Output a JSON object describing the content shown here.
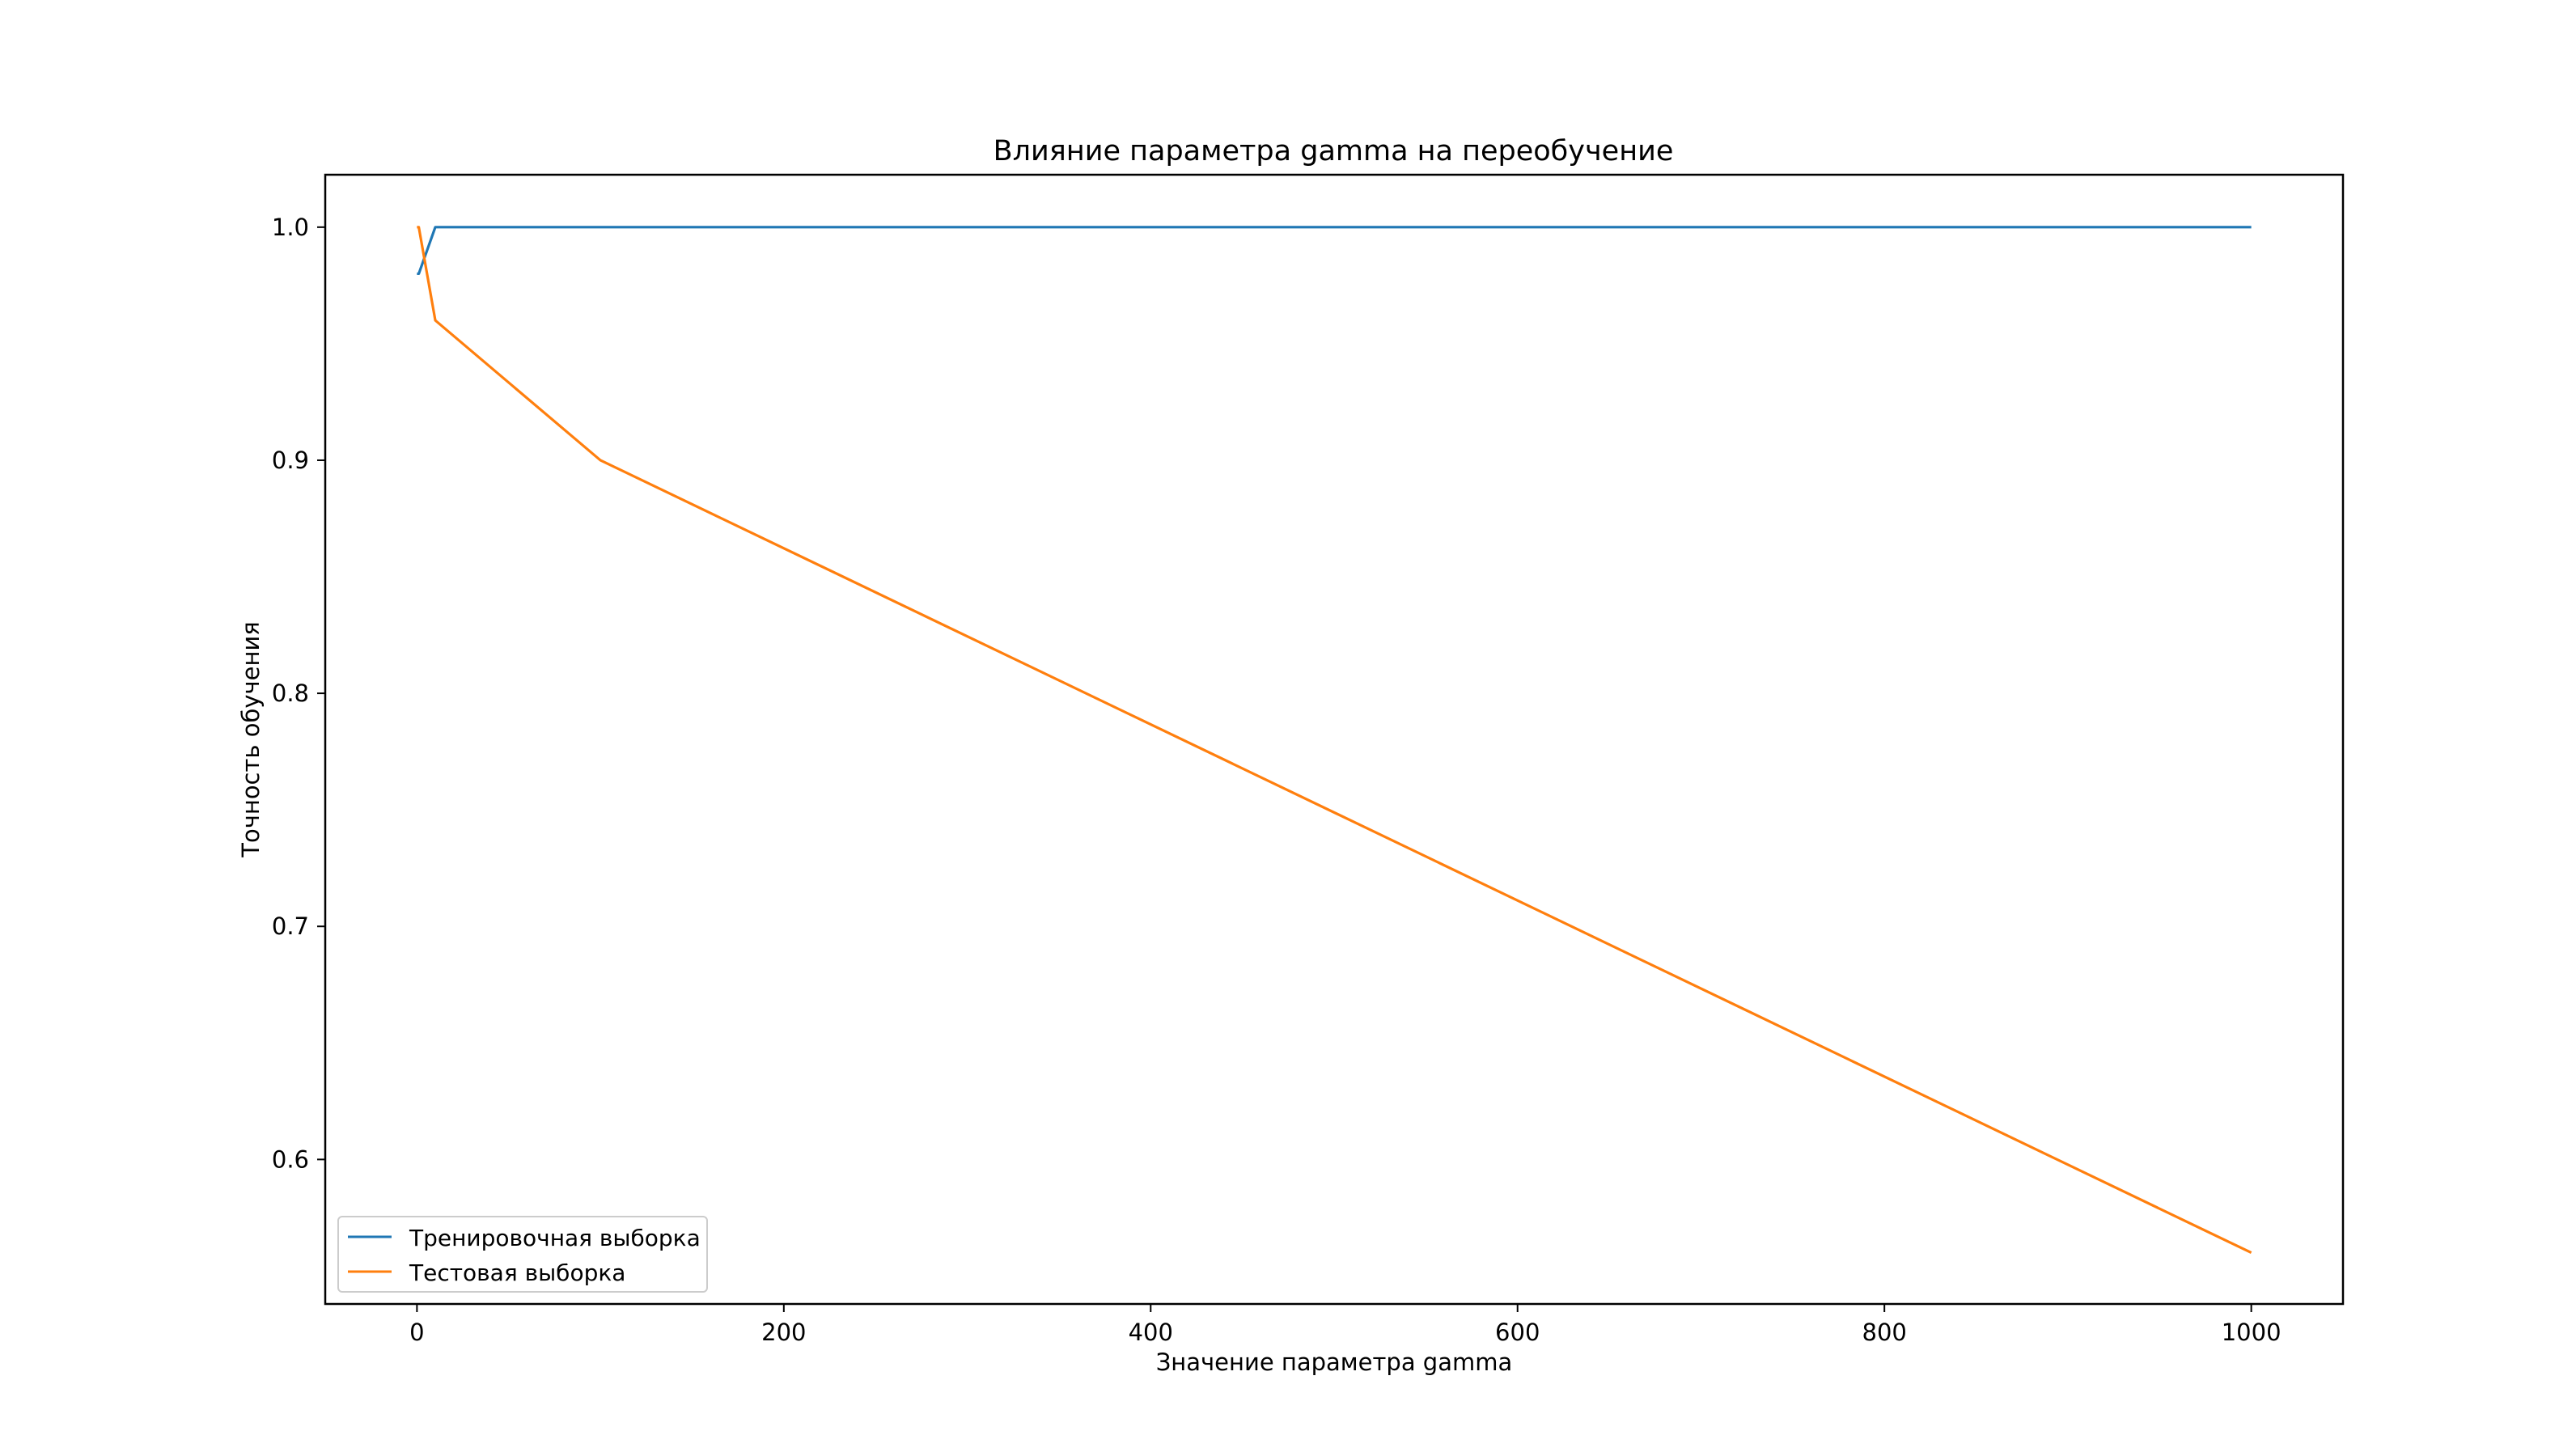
{
  "chart_data": {
    "type": "line",
    "title": "Влияние параметра gamma на переобучение",
    "xlabel": "Значение параметра gamma",
    "ylabel": "Точность обучения",
    "xlim": [
      -50,
      1050
    ],
    "ylim": [
      0.538,
      1.0225
    ],
    "xticks": [
      0,
      200,
      400,
      600,
      800,
      1000
    ],
    "xtick_labels": [
      "0",
      "200",
      "400",
      "600",
      "800",
      "1000"
    ],
    "yticks": [
      0.6,
      0.7,
      0.8,
      0.9,
      1.0
    ],
    "ytick_labels": [
      "0.6",
      "0.7",
      "0.8",
      "0.9",
      "1.0"
    ],
    "grid": false,
    "legend_position": "lower-left",
    "series": [
      {
        "name": "Тренировочная выборка",
        "color": "#1f77b4",
        "x": [
          0.001,
          0.01,
          0.1,
          1,
          10,
          100,
          1000
        ],
        "y": [
          0.98,
          0.98,
          0.98,
          0.98,
          1.0,
          1.0,
          1.0
        ]
      },
      {
        "name": "Тестовая выборка",
        "color": "#ff7f0e",
        "x": [
          0.001,
          0.01,
          0.1,
          1,
          10,
          100,
          1000
        ],
        "y": [
          1.0,
          1.0,
          1.0,
          1.0,
          0.96,
          0.9,
          0.56
        ]
      }
    ]
  }
}
